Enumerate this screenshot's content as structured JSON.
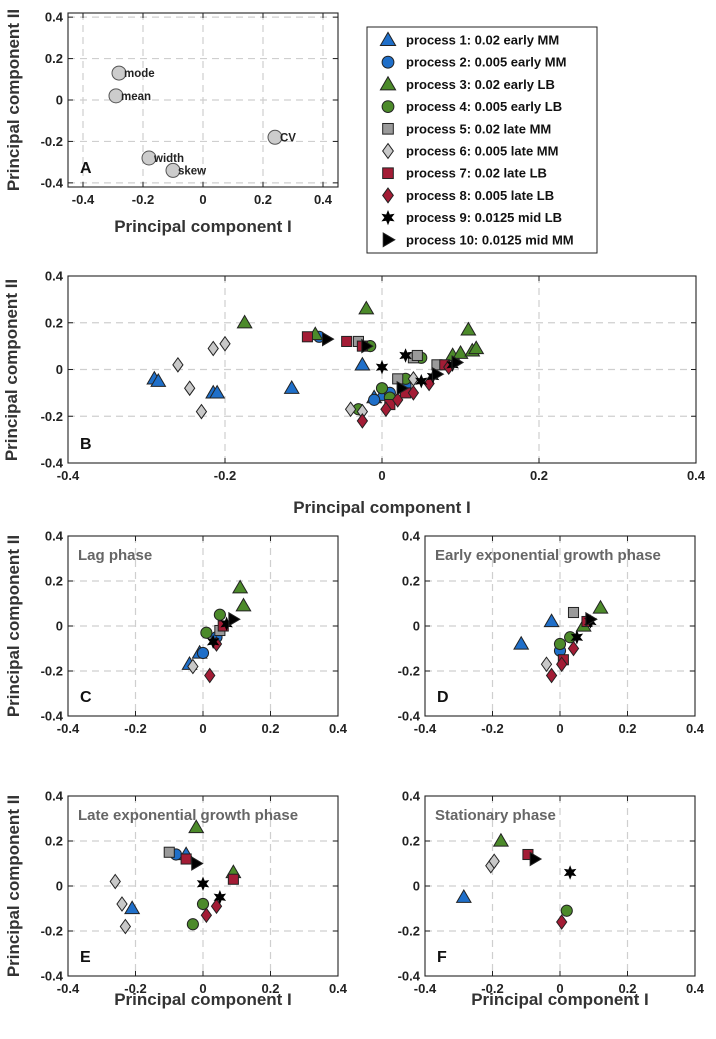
{
  "colors": {
    "MM_early": "#1f6fc9",
    "LB_early": "#4c8a2a",
    "MM_late": "#9a9a9a",
    "MM_late_light": "#c8c8c8",
    "LB_late": "#a31c35",
    "mid": "#000000",
    "loading": "#cccccc"
  },
  "legend": [
    {
      "label": "process  1: 0.02 early MM",
      "marker": "triangle",
      "color": "#1f6fc9"
    },
    {
      "label": "process  2: 0.005 early MM",
      "marker": "circle",
      "color": "#1f6fc9"
    },
    {
      "label": "process  3: 0.02 early LB",
      "marker": "triangle",
      "color": "#4c8a2a"
    },
    {
      "label": "process  4: 0.005 early LB",
      "marker": "circle",
      "color": "#4c8a2a"
    },
    {
      "label": "process  5: 0.02 late MM",
      "marker": "square",
      "color": "#9a9a9a"
    },
    {
      "label": "process  6: 0.005 late MM",
      "marker": "diamond",
      "color": "#c8c8c8"
    },
    {
      "label": "process  7: 0.02 late LB",
      "marker": "square",
      "color": "#a31c35"
    },
    {
      "label": "process  8: 0.005 late LB",
      "marker": "diamond",
      "color": "#a31c35"
    },
    {
      "label": "process  9: 0.0125 mid LB",
      "marker": "star",
      "color": "#000000"
    },
    {
      "label": "process 10: 0.0125 mid MM",
      "marker": "triangle-right",
      "color": "#000000"
    }
  ],
  "chart_data": [
    {
      "id": "A",
      "type": "scatter",
      "panel_label": "A",
      "xlabel": "Principal component I",
      "ylabel": "Principal component II",
      "xlim": [
        -0.45,
        0.45
      ],
      "ylim": [
        -0.42,
        0.42
      ],
      "xticks": [
        -0.4,
        -0.2,
        0,
        0.2,
        0.4
      ],
      "xticklabels": [
        "-0.4",
        "-0.2",
        "0",
        "0.2",
        "0.4"
      ],
      "yticks": [
        -0.4,
        -0.2,
        0,
        0.2,
        0.4
      ],
      "yticklabels": [
        "-0.4",
        "-0.2",
        "0",
        "0.2",
        "0.4"
      ],
      "grid": true,
      "points": [
        {
          "x": -0.28,
          "y": 0.13,
          "label": "mode"
        },
        {
          "x": -0.29,
          "y": 0.02,
          "label": "mean"
        },
        {
          "x": -0.18,
          "y": -0.28,
          "label": "width"
        },
        {
          "x": -0.1,
          "y": -0.34,
          "label": "skew"
        },
        {
          "x": 0.24,
          "y": -0.18,
          "label": "CV"
        }
      ]
    },
    {
      "id": "B",
      "type": "scatter",
      "panel_label": "B",
      "xlabel": "Principal component I",
      "ylabel": "Principal component II",
      "xlim": [
        -0.4,
        0.4
      ],
      "ylim": [
        -0.4,
        0.4
      ],
      "xticks": [
        -0.4,
        -0.2,
        0,
        0.2,
        0.4
      ],
      "xticklabels": [
        "-0.4",
        "-0.2",
        "0",
        "0.2",
        "0.4"
      ],
      "yticks": [
        -0.4,
        -0.2,
        0,
        0.2,
        0.4
      ],
      "yticklabels": [
        "-0.4",
        "-0.2",
        "0",
        "0.2",
        "0.4"
      ],
      "grid": true,
      "series": [
        {
          "process": 1,
          "points": [
            [
              -0.29,
              -0.04
            ],
            [
              -0.285,
              -0.05
            ],
            [
              -0.215,
              -0.1
            ],
            [
              -0.21,
              -0.1
            ],
            [
              -0.115,
              -0.08
            ],
            [
              -0.025,
              0.02
            ],
            [
              -0.01,
              -0.12
            ],
            [
              0.0,
              -0.11
            ]
          ]
        },
        {
          "process": 2,
          "points": [
            [
              -0.08,
              0.14
            ],
            [
              -0.01,
              -0.13
            ],
            [
              0.01,
              -0.1
            ],
            [
              0.03,
              -0.07
            ]
          ]
        },
        {
          "process": 3,
          "points": [
            [
              -0.175,
              0.2
            ],
            [
              -0.02,
              0.26
            ],
            [
              -0.085,
              0.15
            ],
            [
              0.09,
              0.06
            ],
            [
              0.1,
              0.07
            ],
            [
              0.11,
              0.17
            ],
            [
              0.115,
              0.08
            ],
            [
              0.12,
              0.09
            ]
          ]
        },
        {
          "process": 4,
          "points": [
            [
              -0.03,
              -0.17
            ],
            [
              0.0,
              -0.08
            ],
            [
              0.01,
              -0.12
            ],
            [
              0.03,
              -0.04
            ],
            [
              0.05,
              0.05
            ],
            [
              -0.015,
              0.1
            ]
          ]
        },
        {
          "process": 5,
          "points": [
            [
              -0.03,
              0.12
            ],
            [
              0.02,
              -0.04
            ],
            [
              0.04,
              0.05
            ],
            [
              0.045,
              0.06
            ],
            [
              0.07,
              0.02
            ]
          ]
        },
        {
          "process": 6,
          "points": [
            [
              -0.26,
              0.02
            ],
            [
              -0.245,
              -0.08
            ],
            [
              -0.23,
              -0.18
            ],
            [
              -0.215,
              0.09
            ],
            [
              -0.2,
              0.11
            ],
            [
              -0.04,
              -0.17
            ],
            [
              -0.025,
              -0.18
            ],
            [
              0.04,
              -0.04
            ]
          ]
        },
        {
          "process": 7,
          "points": [
            [
              -0.095,
              0.14
            ],
            [
              -0.045,
              0.12
            ],
            [
              -0.025,
              0.1
            ],
            [
              0.01,
              -0.15
            ],
            [
              0.03,
              -0.1
            ],
            [
              0.08,
              0.02
            ]
          ]
        },
        {
          "process": 8,
          "points": [
            [
              -0.025,
              -0.22
            ],
            [
              0.005,
              -0.17
            ],
            [
              0.02,
              -0.13
            ],
            [
              0.04,
              -0.1
            ],
            [
              0.06,
              -0.06
            ],
            [
              0.085,
              0.01
            ]
          ]
        },
        {
          "process": 9,
          "points": [
            [
              0.0,
              0.01
            ],
            [
              0.03,
              0.06
            ],
            [
              0.05,
              -0.05
            ],
            [
              0.065,
              -0.03
            ],
            [
              0.09,
              0.02
            ]
          ]
        },
        {
          "process": 10,
          "points": [
            [
              -0.07,
              0.13
            ],
            [
              -0.02,
              0.1
            ],
            [
              0.025,
              -0.08
            ],
            [
              0.07,
              -0.02
            ],
            [
              0.095,
              0.03
            ]
          ]
        }
      ]
    },
    {
      "id": "C",
      "type": "scatter",
      "panel_label": "C",
      "title": "Lag phase",
      "xlabel": "",
      "ylabel": "Principal component II",
      "xlim": [
        -0.4,
        0.4
      ],
      "ylim": [
        -0.4,
        0.4
      ],
      "xticks": [
        -0.4,
        -0.2,
        0,
        0.2,
        0.4
      ],
      "xticklabels": [
        "-0.4",
        "-0.2",
        "0",
        "0.2",
        "0.4"
      ],
      "yticks": [
        -0.4,
        -0.2,
        0,
        0.2,
        0.4
      ],
      "yticklabels": [
        "-0.4",
        "-0.2",
        "0",
        "0.2",
        "0.4"
      ],
      "grid": true,
      "series": [
        {
          "process": 1,
          "points": [
            [
              -0.01,
              -0.12
            ],
            [
              -0.04,
              -0.17
            ]
          ]
        },
        {
          "process": 2,
          "points": [
            [
              0.0,
              -0.12
            ],
            [
              0.04,
              -0.05
            ]
          ]
        },
        {
          "process": 3,
          "points": [
            [
              0.11,
              0.17
            ],
            [
              0.12,
              0.09
            ]
          ]
        },
        {
          "process": 4,
          "points": [
            [
              0.05,
              0.05
            ],
            [
              0.01,
              -0.03
            ]
          ]
        },
        {
          "process": 5,
          "points": [
            [
              0.05,
              -0.02
            ]
          ]
        },
        {
          "process": 6,
          "points": [
            [
              -0.03,
              -0.18
            ]
          ]
        },
        {
          "process": 7,
          "points": [
            [
              0.06,
              0.0
            ]
          ]
        },
        {
          "process": 8,
          "points": [
            [
              0.02,
              -0.22
            ],
            [
              0.04,
              -0.08
            ]
          ]
        },
        {
          "process": 9,
          "points": [
            [
              0.03,
              -0.07
            ],
            [
              0.07,
              0.01
            ]
          ]
        },
        {
          "process": 10,
          "points": [
            [
              0.09,
              0.03
            ]
          ]
        }
      ]
    },
    {
      "id": "D",
      "type": "scatter",
      "panel_label": "D",
      "title": "Early exponential growth phase",
      "xlabel": "",
      "ylabel": "",
      "xlim": [
        -0.4,
        0.4
      ],
      "ylim": [
        -0.4,
        0.4
      ],
      "xticks": [
        -0.4,
        -0.2,
        0,
        0.2,
        0.4
      ],
      "xticklabels": [
        "-0.4",
        "-0.2",
        "0",
        "0.2",
        "0.4"
      ],
      "yticks": [
        -0.4,
        -0.2,
        0,
        0.2,
        0.4
      ],
      "yticklabels": [
        "-0.4",
        "-0.2",
        "0",
        "0.2",
        "0.4"
      ],
      "grid": true,
      "series": [
        {
          "process": 1,
          "points": [
            [
              -0.115,
              -0.08
            ],
            [
              -0.025,
              0.02
            ]
          ]
        },
        {
          "process": 2,
          "points": [
            [
              0.0,
              -0.11
            ]
          ]
        },
        {
          "process": 3,
          "points": [
            [
              0.07,
              0.0
            ],
            [
              0.12,
              0.08
            ]
          ]
        },
        {
          "process": 4,
          "points": [
            [
              0.0,
              -0.08
            ],
            [
              0.03,
              -0.05
            ]
          ]
        },
        {
          "process": 5,
          "points": [
            [
              0.04,
              0.06
            ]
          ]
        },
        {
          "process": 6,
          "points": [
            [
              -0.04,
              -0.17
            ]
          ]
        },
        {
          "process": 7,
          "points": [
            [
              0.01,
              -0.15
            ],
            [
              0.08,
              0.02
            ]
          ]
        },
        {
          "process": 8,
          "points": [
            [
              -0.025,
              -0.22
            ],
            [
              0.005,
              -0.17
            ],
            [
              0.04,
              -0.1
            ]
          ]
        },
        {
          "process": 9,
          "points": [
            [
              0.05,
              -0.05
            ],
            [
              0.09,
              0.02
            ]
          ]
        },
        {
          "process": 10,
          "points": [
            [
              0.09,
              0.03
            ]
          ]
        }
      ]
    },
    {
      "id": "E",
      "type": "scatter",
      "panel_label": "E",
      "title": "Late exponential growth phase",
      "xlabel": "Principal component I",
      "ylabel": "Principal component II",
      "xlim": [
        -0.4,
        0.4
      ],
      "ylim": [
        -0.4,
        0.4
      ],
      "xticks": [
        -0.4,
        -0.2,
        0,
        0.2,
        0.4
      ],
      "xticklabels": [
        "-0.4",
        "-0.2",
        "0",
        "0.2",
        "0.4"
      ],
      "yticks": [
        -0.4,
        -0.2,
        0,
        0.2,
        0.4
      ],
      "yticklabels": [
        "-0.4",
        "-0.2",
        "0",
        "0.2",
        "0.4"
      ],
      "grid": true,
      "series": [
        {
          "process": 1,
          "points": [
            [
              -0.21,
              -0.1
            ],
            [
              -0.05,
              0.14
            ]
          ]
        },
        {
          "process": 2,
          "points": [
            [
              -0.08,
              0.14
            ]
          ]
        },
        {
          "process": 3,
          "points": [
            [
              -0.02,
              0.26
            ],
            [
              0.09,
              0.06
            ]
          ]
        },
        {
          "process": 4,
          "points": [
            [
              -0.03,
              -0.17
            ],
            [
              0.0,
              -0.08
            ]
          ]
        },
        {
          "process": 5,
          "points": [
            [
              -0.1,
              0.15
            ]
          ]
        },
        {
          "process": 6,
          "points": [
            [
              -0.26,
              0.02
            ],
            [
              -0.24,
              -0.08
            ],
            [
              -0.23,
              -0.18
            ]
          ]
        },
        {
          "process": 7,
          "points": [
            [
              -0.05,
              0.12
            ],
            [
              0.09,
              0.03
            ]
          ]
        },
        {
          "process": 8,
          "points": [
            [
              0.01,
              -0.13
            ],
            [
              0.04,
              -0.09
            ]
          ]
        },
        {
          "process": 9,
          "points": [
            [
              0.0,
              0.01
            ],
            [
              0.05,
              -0.05
            ]
          ]
        },
        {
          "process": 10,
          "points": [
            [
              -0.02,
              0.1
            ]
          ]
        }
      ]
    },
    {
      "id": "F",
      "type": "scatter",
      "panel_label": "F",
      "title": "Stationary phase",
      "xlabel": "Principal component I",
      "ylabel": "",
      "xlim": [
        -0.4,
        0.4
      ],
      "ylim": [
        -0.4,
        0.4
      ],
      "xticks": [
        -0.4,
        -0.2,
        0,
        0.2,
        0.4
      ],
      "xticklabels": [
        "-0.4",
        "-0.2",
        "0",
        "0.2",
        "0.4"
      ],
      "yticks": [
        -0.4,
        -0.2,
        0,
        0.2,
        0.4
      ],
      "yticklabels": [
        "-0.4",
        "-0.2",
        "0",
        "0.2",
        "0.4"
      ],
      "grid": true,
      "series": [
        {
          "process": 1,
          "points": [
            [
              -0.285,
              -0.05
            ]
          ]
        },
        {
          "process": 3,
          "points": [
            [
              -0.175,
              0.2
            ]
          ]
        },
        {
          "process": 4,
          "points": [
            [
              0.02,
              -0.11
            ]
          ]
        },
        {
          "process": 6,
          "points": [
            [
              -0.205,
              0.09
            ],
            [
              -0.195,
              0.11
            ]
          ]
        },
        {
          "process": 7,
          "points": [
            [
              -0.095,
              0.14
            ]
          ]
        },
        {
          "process": 8,
          "points": [
            [
              0.005,
              -0.16
            ]
          ]
        },
        {
          "process": 9,
          "points": [
            [
              0.03,
              0.06
            ]
          ]
        },
        {
          "process": 10,
          "points": [
            [
              -0.075,
              0.12
            ]
          ]
        }
      ]
    }
  ]
}
